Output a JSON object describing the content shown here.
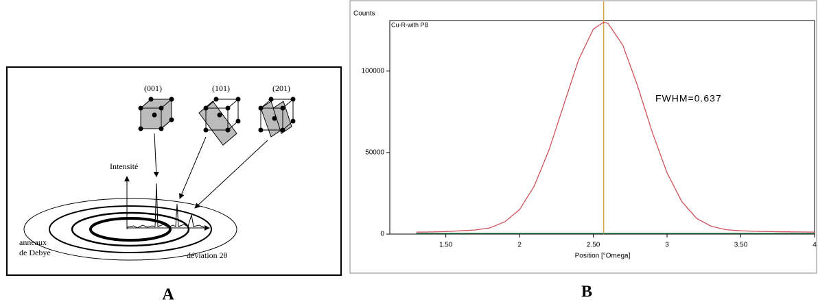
{
  "diagram": {
    "planes": [
      "(001)",
      "(101)",
      "(201)"
    ],
    "y_axis": "Intensité",
    "rings_label": [
      "anneaux",
      "de Debye"
    ],
    "x_axis": "déviation 2θ"
  },
  "panels": [
    "A",
    "B"
  ],
  "chart_data": {
    "type": "line",
    "y_label": "Counts",
    "x_label": "Position [°Omega]",
    "annotation": "FWHM=0.637",
    "x": [
      1.3,
      1.4,
      1.5,
      1.6,
      1.7,
      1.8,
      1.9,
      2.0,
      2.1,
      2.2,
      2.3,
      2.4,
      2.5,
      2.57,
      2.6,
      2.7,
      2.8,
      2.9,
      3.0,
      3.1,
      3.2,
      3.3,
      3.4,
      3.5,
      3.6,
      3.7,
      3.8,
      3.9,
      4.0
    ],
    "series": [
      {
        "name": "Cu-R-with PB",
        "color": "#d0505a",
        "values": [
          1200,
          1300,
          1500,
          2000,
          2500,
          3800,
          7500,
          15000,
          29500,
          51700,
          79400,
          106900,
          125700,
          130000,
          129200,
          115900,
          90900,
          62300,
          37500,
          19900,
          9600,
          4800,
          2700,
          2000,
          1700,
          1500,
          1400,
          1300,
          1200
        ]
      },
      {
        "color": "#3a9a6a",
        "values": [
          500,
          500,
          500,
          500,
          500,
          500,
          500,
          500,
          500,
          500,
          500,
          500,
          500,
          500,
          500,
          500,
          500,
          500,
          500,
          500,
          500,
          500,
          500,
          500,
          500,
          500,
          500,
          500,
          500
        ]
      }
    ],
    "vline": {
      "value": 2.57,
      "color": "#d9a040"
    },
    "xlim": [
      1.12,
      4.0
    ],
    "ylim": [
      0,
      131000
    ],
    "xticks": [
      {
        "value": 1.5,
        "label": "1.50"
      },
      2,
      {
        "value": 2.5,
        "label": "2.50"
      },
      3,
      {
        "value": 3.5,
        "label": "3.50"
      },
      4
    ],
    "yticks": [
      0,
      50000,
      100000
    ]
  }
}
